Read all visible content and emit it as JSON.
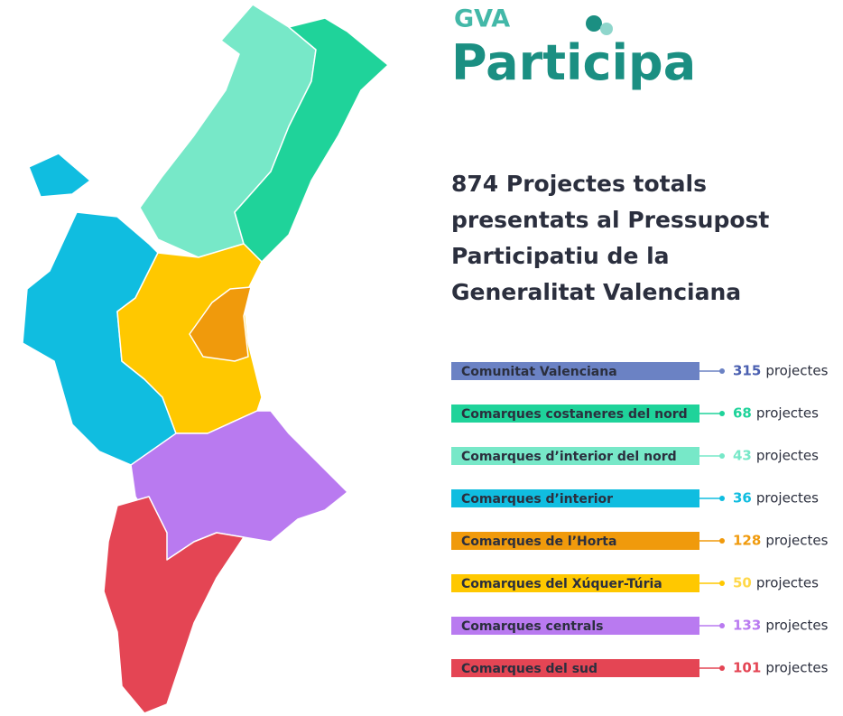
{
  "header": {
    "brand_small": "GVA",
    "brand_large": "Participa"
  },
  "title": [
    "874 Projectes totals",
    "presentats al Pressupost",
    "Participatiu de la",
    "Generalitat Valenciana"
  ],
  "regions": [
    {
      "name": "Comunitat Valenciana",
      "count": 315,
      "unit": "projectes",
      "color": "#6b82c4",
      "number_color": "#4a5fb0"
    },
    {
      "name": "Comarques costaneres del nord",
      "count": 68,
      "unit": "projectes",
      "color": "#1fd39a",
      "number_color": "#1fd39a"
    },
    {
      "name": "Comarques d’interior del nord",
      "count": 43,
      "unit": "projectes",
      "color": "#77e8c8",
      "number_color": "#77e8c8"
    },
    {
      "name": "Comarques d’interior",
      "count": 36,
      "unit": "projectes",
      "color": "#10bde0",
      "number_color": "#10bde0"
    },
    {
      "name": "Comarques de l’Horta",
      "count": 128,
      "unit": "projectes",
      "color": "#f09a0c",
      "number_color": "#f09a0c"
    },
    {
      "name": "Comarques del Xúquer-Túria",
      "count": 50,
      "unit": "projectes",
      "color": "#ffc800",
      "number_color": "#ffd84a"
    },
    {
      "name": "Comarques centrals",
      "count": 133,
      "unit": "projectes",
      "color": "#b97af0",
      "number_color": "#b97af0"
    },
    {
      "name": "Comarques del sud",
      "count": 101,
      "unit": "projectes",
      "color": "#e44554",
      "number_color": "#e44554"
    }
  ]
}
